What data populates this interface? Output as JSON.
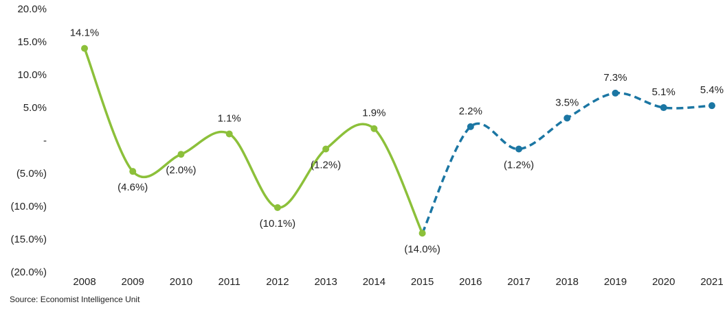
{
  "chart_data": {
    "type": "line",
    "categories": [
      "2008",
      "2009",
      "2010",
      "2011",
      "2012",
      "2013",
      "2014",
      "2015",
      "2016",
      "2017",
      "2018",
      "2019",
      "2020",
      "2021"
    ],
    "series": [
      {
        "color": "#8cc03a",
        "dashed": false,
        "values": [
          14.1,
          -4.6,
          -2.0,
          1.1,
          -10.1,
          -1.2,
          1.9,
          -14.0,
          null,
          null,
          null,
          null,
          null,
          null
        ],
        "value_labels": [
          "14.1%",
          "(4.6%)",
          "(2.0%)",
          "1.1%",
          "(10.1%)",
          "(1.2%)",
          "1.9%",
          "(14.0%)",
          null,
          null,
          null,
          null,
          null,
          null
        ]
      },
      {
        "color": "#1b76a3",
        "dashed": true,
        "values": [
          null,
          null,
          null,
          null,
          null,
          null,
          null,
          -14.0,
          2.2,
          -1.2,
          3.5,
          7.3,
          5.1,
          5.4
        ],
        "value_labels": [
          null,
          null,
          null,
          null,
          null,
          null,
          null,
          null,
          "2.2%",
          "(1.2%)",
          "3.5%",
          "7.3%",
          "5.1%",
          "5.4%"
        ]
      }
    ],
    "ylim": [
      -20,
      20
    ],
    "yticks": [
      {
        "value": -20,
        "label": "(20.0%)"
      },
      {
        "value": -15,
        "label": "(15.0%)"
      },
      {
        "value": -10,
        "label": "(10.0%)"
      },
      {
        "value": -5,
        "label": "(5.0%)"
      },
      {
        "value": 0,
        "label": "-"
      },
      {
        "value": 5,
        "label": "5.0%"
      },
      {
        "value": 10,
        "label": "10.0%"
      },
      {
        "value": 15,
        "label": "15.0%"
      },
      {
        "value": 20,
        "label": "20.0%"
      }
    ],
    "grid": false,
    "source": "Source: Economist Intelligence Unit"
  }
}
